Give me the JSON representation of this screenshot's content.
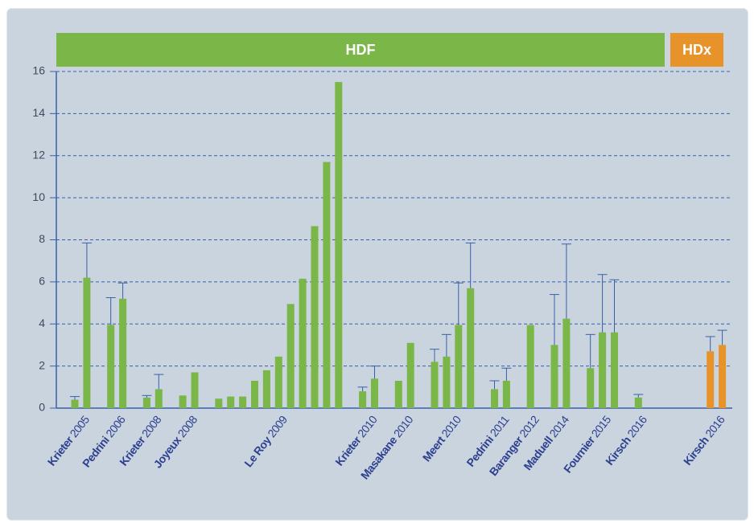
{
  "chart_data": {
    "type": "bar",
    "ylim": [
      0,
      16
    ],
    "yticks": [
      0,
      2,
      4,
      6,
      8,
      10,
      12,
      14,
      16
    ],
    "grid": true,
    "sections": [
      {
        "label": "HDF",
        "color": "#7ab648",
        "groups": [
          {
            "name": "Krieter",
            "year": "2005",
            "values": [
              0.4,
              6.2
            ],
            "errors": [
              0.15,
              1.65
            ]
          },
          {
            "name": "Pedrini",
            "year": "2006",
            "values": [
              3.95,
              5.2
            ],
            "errors": [
              1.3,
              0.75
            ]
          },
          {
            "name": "Krieter",
            "year": "2008",
            "values": [
              0.5,
              0.9
            ],
            "errors": [
              0.1,
              0.7
            ]
          },
          {
            "name": "Joyeux",
            "year": "2008",
            "values": [
              0.6,
              1.7
            ],
            "errors": [
              null,
              null
            ]
          },
          {
            "name": "Le Roy",
            "year": "2009",
            "values": [
              0.45,
              0.55,
              0.55,
              1.3,
              1.8,
              2.45,
              4.95,
              6.15,
              8.65,
              11.7,
              15.5
            ],
            "errors": [
              null,
              null,
              null,
              null,
              null,
              null,
              null,
              null,
              null,
              null,
              null
            ]
          },
          {
            "name": "Krieter",
            "year": "2010",
            "values": [
              0.8,
              1.4
            ],
            "errors": [
              0.2,
              0.6
            ]
          },
          {
            "name": "Masakane",
            "year": "2010",
            "values": [
              1.3,
              3.1
            ],
            "errors": [
              null,
              null
            ]
          },
          {
            "name": "Meert",
            "year": "2010",
            "values": [
              2.2,
              2.45,
              3.95,
              5.7
            ],
            "errors": [
              0.6,
              1.05,
              2.0,
              2.15
            ]
          },
          {
            "name": "Pedrini",
            "year": "2011",
            "values": [
              0.9,
              1.3
            ],
            "errors": [
              0.4,
              0.6
            ]
          },
          {
            "name": "Baranger",
            "year": "2012",
            "values": [
              3.95
            ],
            "errors": [
              null
            ]
          },
          {
            "name": "Maduell",
            "year": "2014",
            "values": [
              3.0,
              4.25
            ],
            "errors": [
              2.4,
              3.55
            ]
          },
          {
            "name": "Fournier",
            "year": "2015",
            "values": [
              1.9,
              3.6,
              3.6
            ],
            "errors": [
              1.6,
              2.75,
              2.5
            ]
          },
          {
            "name": "Kirsch",
            "year": "2016",
            "values": [
              0.5
            ],
            "errors": [
              0.15
            ]
          }
        ]
      },
      {
        "label": "HDx",
        "color": "#e8922a",
        "groups": [
          {
            "name": "Kirsch",
            "year": "2016",
            "values": [
              2.7,
              3.0
            ],
            "errors": [
              0.7,
              0.7
            ]
          }
        ]
      }
    ]
  }
}
